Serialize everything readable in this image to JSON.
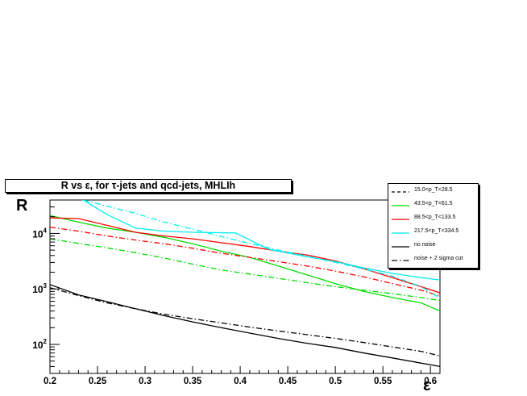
{
  "chart_data": {
    "type": "line",
    "title": "R vs ε, for τ-jets and qcd-jets, MHLIh",
    "xlabel": "ε",
    "ylabel": "R",
    "xlim": [
      0.2,
      0.61
    ],
    "ylim": [
      30,
      40000
    ],
    "y_scale": "log",
    "x_ticks": [
      "0.2",
      "0.25",
      "0.3",
      "0.35",
      "0.4",
      "0.45",
      "0.5",
      "0.55",
      "0.6"
    ],
    "x_tick_values": [
      0.2,
      0.25,
      0.3,
      0.35,
      0.4,
      0.45,
      0.5,
      0.55,
      0.6
    ],
    "y_ticks": [
      {
        "value": 100,
        "base": "10",
        "exp": "2"
      },
      {
        "value": 1000,
        "base": "10",
        "exp": "3"
      },
      {
        "value": 10000,
        "base": "10",
        "exp": "4"
      }
    ],
    "legend_position": "top-right",
    "legend": [
      {
        "label": "15.0<p_T<28.5",
        "color": "#000000",
        "style": "dashed"
      },
      {
        "label": "43.5<p_T<61.5",
        "color": "#00dd00",
        "style": "solid"
      },
      {
        "label": "88.5<p_T<133.5",
        "color": "#ff0000",
        "style": "solid"
      },
      {
        "label": "217.5<p_T<334.5",
        "color": "#00eeee",
        "style": "solid"
      },
      {
        "label": "no noise",
        "color": "#000000",
        "style": "solid"
      },
      {
        "label": "noise + 2 sigma cut",
        "color": "#000000",
        "style": "dashdot"
      }
    ],
    "series": [
      {
        "color": "#000000",
        "style": "solid",
        "x": [
          0.2,
          0.23,
          0.26,
          0.29,
          0.32,
          0.35,
          0.38,
          0.41,
          0.44,
          0.47,
          0.5,
          0.53,
          0.56,
          0.59,
          0.61
        ],
        "y": [
          1200,
          780,
          590,
          440,
          330,
          255,
          200,
          160,
          128,
          105,
          88,
          70,
          57,
          46,
          40
        ]
      },
      {
        "color": "#000000",
        "style": "dashdot",
        "x": [
          0.2,
          0.23,
          0.26,
          0.29,
          0.32,
          0.35,
          0.38,
          0.41,
          0.44,
          0.47,
          0.5,
          0.53,
          0.56,
          0.59,
          0.61
        ],
        "y": [
          1050,
          760,
          560,
          440,
          350,
          290,
          245,
          205,
          175,
          150,
          128,
          108,
          90,
          75,
          62
        ]
      },
      {
        "color": "#00dd00",
        "style": "solid",
        "x": [
          0.2,
          0.23,
          0.26,
          0.29,
          0.32,
          0.35,
          0.38,
          0.41,
          0.44,
          0.47,
          0.5,
          0.53,
          0.56,
          0.59,
          0.61
        ],
        "y": [
          21000,
          16000,
          12500,
          10500,
          8500,
          6500,
          4800,
          3700,
          2600,
          1800,
          1250,
          900,
          700,
          560,
          400
        ]
      },
      {
        "color": "#00dd00",
        "style": "dashdot",
        "x": [
          0.2,
          0.23,
          0.26,
          0.29,
          0.32,
          0.35,
          0.38,
          0.41,
          0.44,
          0.47,
          0.5,
          0.53,
          0.56,
          0.59,
          0.61
        ],
        "y": [
          8000,
          6600,
          5500,
          4500,
          3600,
          2800,
          2200,
          1850,
          1550,
          1300,
          1100,
          950,
          820,
          700,
          620
        ]
      },
      {
        "color": "#ff0000",
        "style": "solid",
        "x": [
          0.2,
          0.23,
          0.26,
          0.29,
          0.32,
          0.35,
          0.38,
          0.41,
          0.44,
          0.47,
          0.5,
          0.53,
          0.56,
          0.59,
          0.61
        ],
        "y": [
          19000,
          18500,
          14000,
          10500,
          9000,
          8000,
          6800,
          5800,
          4800,
          4100,
          3200,
          2300,
          1600,
          1100,
          850
        ]
      },
      {
        "color": "#ff0000",
        "style": "dashdot",
        "x": [
          0.2,
          0.23,
          0.26,
          0.29,
          0.32,
          0.35,
          0.38,
          0.41,
          0.44,
          0.47,
          0.5,
          0.53,
          0.56,
          0.59,
          0.61
        ],
        "y": [
          13000,
          11000,
          9000,
          7600,
          6500,
          5400,
          4400,
          3700,
          3100,
          2600,
          2100,
          1650,
          1250,
          950,
          750
        ]
      },
      {
        "color": "#00eeee",
        "style": "solid",
        "x": [
          0.2,
          0.235,
          0.26,
          0.29,
          0.32,
          0.35,
          0.395,
          0.43,
          0.47,
          0.5,
          0.53,
          0.56,
          0.59,
          0.61
        ],
        "y": [
          60000,
          40000,
          22000,
          12500,
          11000,
          10500,
          10200,
          5200,
          3800,
          3100,
          2400,
          1900,
          1600,
          1450
        ]
      },
      {
        "color": "#00eeee",
        "style": "dashdot",
        "x": [
          0.2,
          0.23,
          0.26,
          0.29,
          0.32,
          0.35,
          0.38,
          0.41,
          0.44,
          0.47,
          0.5,
          0.53,
          0.56,
          0.59,
          0.61
        ],
        "y": [
          60000,
          42000,
          31000,
          23000,
          16000,
          12000,
          8800,
          6600,
          5000,
          3900,
          3000,
          2300,
          1700,
          1100,
          680
        ]
      }
    ]
  }
}
